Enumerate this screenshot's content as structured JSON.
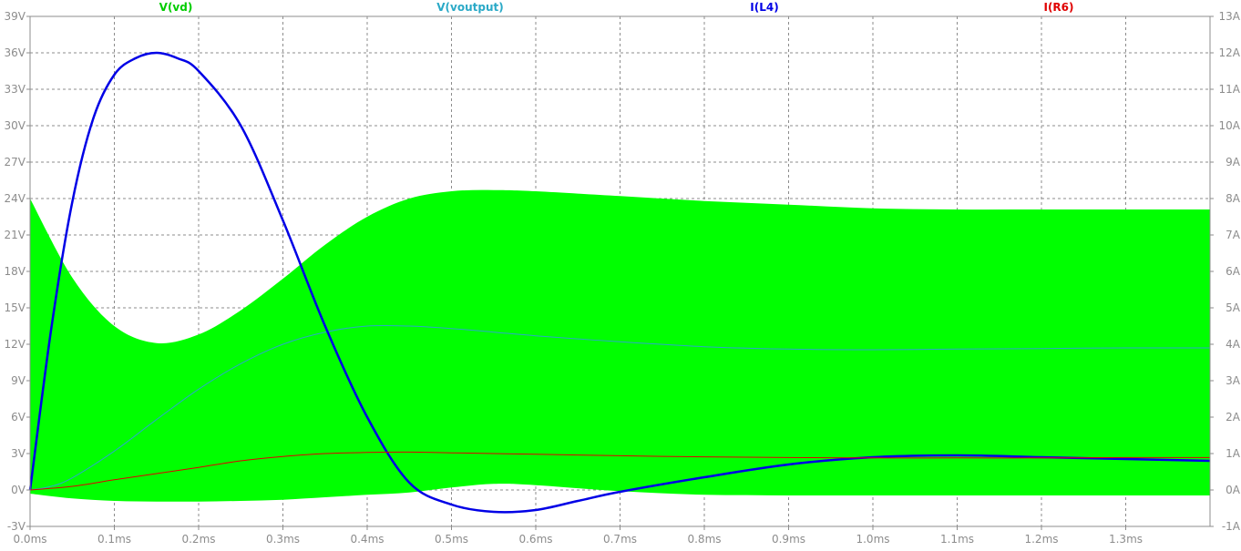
{
  "chart_data": {
    "type": "line",
    "xlabel": "",
    "ylabel_left": "",
    "ylabel_right": "",
    "xlim": [
      0,
      1.4
    ],
    "ylim_left": [
      -3,
      39
    ],
    "ylim_right": [
      -1,
      13
    ],
    "grid": true,
    "x_ticks": [
      0,
      0.1,
      0.2,
      0.3,
      0.4,
      0.5,
      0.6,
      0.7,
      0.8,
      0.9,
      1.0,
      1.1,
      1.2,
      1.3
    ],
    "x_tick_labels": [
      "0.0ms",
      "0.1ms",
      "0.2ms",
      "0.3ms",
      "0.4ms",
      "0.5ms",
      "0.6ms",
      "0.7ms",
      "0.8ms",
      "0.9ms",
      "1.0ms",
      "1.1ms",
      "1.2ms",
      "1.3ms"
    ],
    "y_left_ticks": [
      -3,
      0,
      3,
      6,
      9,
      12,
      15,
      18,
      21,
      24,
      27,
      30,
      33,
      36,
      39
    ],
    "y_left_tick_labels": [
      "-3V",
      "0V",
      "3V",
      "6V",
      "9V",
      "12V",
      "15V",
      "18V",
      "21V",
      "24V",
      "27V",
      "30V",
      "33V",
      "36V",
      "39V"
    ],
    "y_right_ticks": [
      -1,
      0,
      1,
      2,
      3,
      4,
      5,
      6,
      7,
      8,
      9,
      10,
      11,
      12,
      13
    ],
    "y_right_tick_labels": [
      "-1A",
      "0A",
      "1A",
      "2A",
      "3A",
      "4A",
      "5A",
      "6A",
      "7A",
      "8A",
      "9A",
      "10A",
      "11A",
      "12A",
      "13A"
    ],
    "series": [
      {
        "name": "V(vd)",
        "axis": "left",
        "style": "band",
        "color": "#00ff00",
        "x": [
          0,
          0.05,
          0.1,
          0.15,
          0.2,
          0.25,
          0.3,
          0.35,
          0.4,
          0.45,
          0.5,
          0.55,
          0.6,
          0.7,
          0.8,
          0.9,
          1.0,
          1.1,
          1.2,
          1.3,
          1.4
        ],
        "upper": [
          24,
          17.5,
          13.5,
          12.1,
          12.8,
          14.8,
          17.4,
          20.2,
          22.5,
          24.0,
          24.6,
          24.7,
          24.6,
          24.2,
          23.8,
          23.5,
          23.2,
          23.1,
          23.1,
          23.1,
          23.1
        ],
        "lower": [
          -0.3,
          -0.7,
          -0.9,
          -0.95,
          -0.95,
          -0.9,
          -0.8,
          -0.6,
          -0.4,
          -0.2,
          0.2,
          0.5,
          0.4,
          -0.1,
          -0.4,
          -0.45,
          -0.45,
          -0.45,
          -0.45,
          -0.45,
          -0.45
        ]
      },
      {
        "name": "V(voutput)",
        "axis": "left",
        "style": "line",
        "color": "#2aa9c7",
        "x": [
          0,
          0.025,
          0.05,
          0.1,
          0.15,
          0.2,
          0.25,
          0.3,
          0.35,
          0.4,
          0.45,
          0.5,
          0.55,
          0.6,
          0.7,
          0.8,
          0.9,
          1.0,
          1.1,
          1.2,
          1.3,
          1.4
        ],
        "y": [
          0,
          0.3,
          1.0,
          3.2,
          5.8,
          8.3,
          10.4,
          12.0,
          13.0,
          13.5,
          13.5,
          13.3,
          13.0,
          12.7,
          12.2,
          11.8,
          11.6,
          11.55,
          11.6,
          11.65,
          11.7,
          11.7
        ]
      },
      {
        "name": "I(L4)",
        "axis": "right",
        "style": "line",
        "color": "#0000e6",
        "x": [
          0,
          0.025,
          0.05,
          0.075,
          0.1,
          0.125,
          0.15,
          0.175,
          0.2,
          0.25,
          0.3,
          0.35,
          0.4,
          0.45,
          0.5,
          0.55,
          0.6,
          0.65,
          0.7,
          0.8,
          0.9,
          1.0,
          1.1,
          1.2,
          1.3,
          1.4
        ],
        "y": [
          0,
          4.4,
          7.9,
          10.2,
          11.4,
          11.85,
          12.0,
          11.85,
          11.5,
          10.0,
          7.4,
          4.5,
          2.0,
          0.2,
          -0.4,
          -0.6,
          -0.55,
          -0.3,
          -0.05,
          0.35,
          0.7,
          0.9,
          0.95,
          0.9,
          0.85,
          0.8
        ]
      },
      {
        "name": "I(R6)",
        "axis": "right",
        "style": "line",
        "color": "#e00000",
        "x": [
          0,
          0.05,
          0.1,
          0.15,
          0.2,
          0.25,
          0.3,
          0.35,
          0.4,
          0.45,
          0.5,
          0.6,
          0.7,
          0.8,
          0.9,
          1.0,
          1.1,
          1.2,
          1.3,
          1.4
        ],
        "y": [
          0,
          0.1,
          0.28,
          0.45,
          0.62,
          0.8,
          0.92,
          1.0,
          1.03,
          1.04,
          1.02,
          0.98,
          0.94,
          0.91,
          0.89,
          0.88,
          0.88,
          0.88,
          0.89,
          0.89
        ]
      }
    ]
  }
}
